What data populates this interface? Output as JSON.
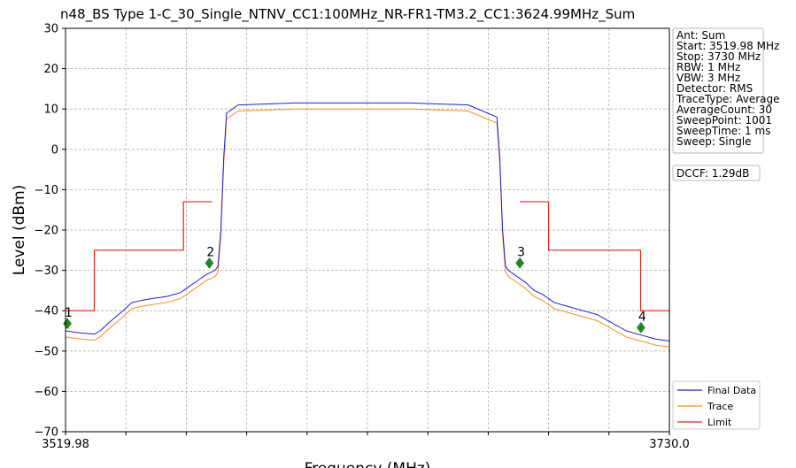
{
  "chart_data": {
    "type": "line",
    "title": "n48_BS Type 1-C_30_Single_NTNV_CC1:100MHz_NR-FR1-TM3.2_CC1:3624.99MHz_Sum",
    "xlabel": "Frequency (MHz)",
    "ylabel": "Level (dBm)",
    "xlim": [
      3519.98,
      3730.0
    ],
    "ylim": [
      -70,
      30
    ],
    "x_tick_labels": [
      "3519.98",
      "3730.0"
    ],
    "y_ticks": [
      30,
      20,
      10,
      0,
      -10,
      -20,
      -30,
      -40,
      -50,
      -60,
      -70
    ],
    "y_tick_labels": [
      "30",
      "20",
      "10",
      "0",
      "−10",
      "−20",
      "−30",
      "−40",
      "−50",
      "−60",
      "−70"
    ],
    "grid": true,
    "legend_position": "bottom-right",
    "series": [
      {
        "name": "Final Data",
        "color": "#1f1fd6",
        "x": [
          3519.98,
          3525,
          3530,
          3532,
          3535,
          3540,
          3543,
          3546,
          3550,
          3555,
          3560,
          3563,
          3566,
          3569,
          3572,
          3573,
          3574,
          3575,
          3576,
          3580,
          3600,
          3620,
          3640,
          3660,
          3670,
          3671,
          3672,
          3673,
          3674,
          3676,
          3680,
          3683,
          3686,
          3690,
          3695,
          3700,
          3705,
          3710,
          3715,
          3720,
          3725,
          3730
        ],
        "y": [
          -45,
          -45.5,
          -45.8,
          -45,
          -43,
          -40,
          -38,
          -37.5,
          -37,
          -36.5,
          -35.5,
          -34,
          -32.5,
          -31,
          -30,
          -29,
          -20,
          -2,
          9,
          11,
          11.5,
          11.5,
          11.5,
          11,
          8,
          -2,
          -20,
          -29,
          -30,
          -31,
          -33,
          -35,
          -36,
          -38,
          -39,
          -40,
          -41,
          -43,
          -45,
          -46,
          -47,
          -47.5
        ]
      },
      {
        "name": "Trace",
        "color": "#ff8c1a",
        "x": [
          3519.98,
          3525,
          3530,
          3532,
          3535,
          3540,
          3543,
          3546,
          3550,
          3555,
          3560,
          3563,
          3566,
          3569,
          3572,
          3573,
          3574,
          3575,
          3576,
          3580,
          3600,
          3620,
          3640,
          3660,
          3670,
          3671,
          3672,
          3673,
          3674,
          3676,
          3680,
          3683,
          3686,
          3690,
          3695,
          3700,
          3705,
          3710,
          3715,
          3720,
          3725,
          3730
        ],
        "y": [
          -46.5,
          -47,
          -47.3,
          -46.5,
          -44.5,
          -41.5,
          -39.5,
          -39,
          -38.5,
          -38,
          -37,
          -35.5,
          -34,
          -32.5,
          -31.5,
          -30.5,
          -21.5,
          -3.5,
          7.5,
          9.5,
          10,
          10,
          10,
          9.5,
          6.5,
          -3.5,
          -21.5,
          -30.5,
          -31.5,
          -32.5,
          -34.5,
          -36.5,
          -37.5,
          -39.5,
          -40.5,
          -41.5,
          -42.5,
          -44.5,
          -46.5,
          -47.5,
          -48.5,
          -49
        ]
      },
      {
        "name": "Limit",
        "color": "#e8221b",
        "segments": [
          {
            "x": [
              3519.98,
              3530,
              3530,
              3561,
              3561,
              3571,
              3571
            ],
            "y": [
              -40,
              -40,
              -25,
              -25,
              -13,
              -13,
              -13
            ]
          },
          {
            "x": [
              3678,
              3678,
              3688,
              3688,
              3720,
              3720,
              3730
            ],
            "y": [
              -13,
              -13,
              -13,
              -25,
              -25,
              -40,
              -40
            ]
          }
        ]
      }
    ],
    "markers": [
      {
        "label": "1",
        "x": 3520.6,
        "y": -43.2
      },
      {
        "label": "2",
        "x": 3570.0,
        "y": -28.2
      },
      {
        "label": "3",
        "x": 3678.0,
        "y": -28.2
      },
      {
        "label": "4",
        "x": 3720.1,
        "y": -44.2
      }
    ],
    "info_box": [
      "Ant: Sum",
      "Start: 3519.98 MHz",
      "Stop: 3730 MHz",
      "RBW: 1 MHz",
      "VBW: 3 MHz",
      "Detector: RMS",
      "TraceType: Average",
      "AverageCount: 30",
      "SweepPoint: 1001",
      "SweepTime: 1 ms",
      "Sweep: Single"
    ],
    "dccf_label": "DCCF: 1.29dB"
  }
}
